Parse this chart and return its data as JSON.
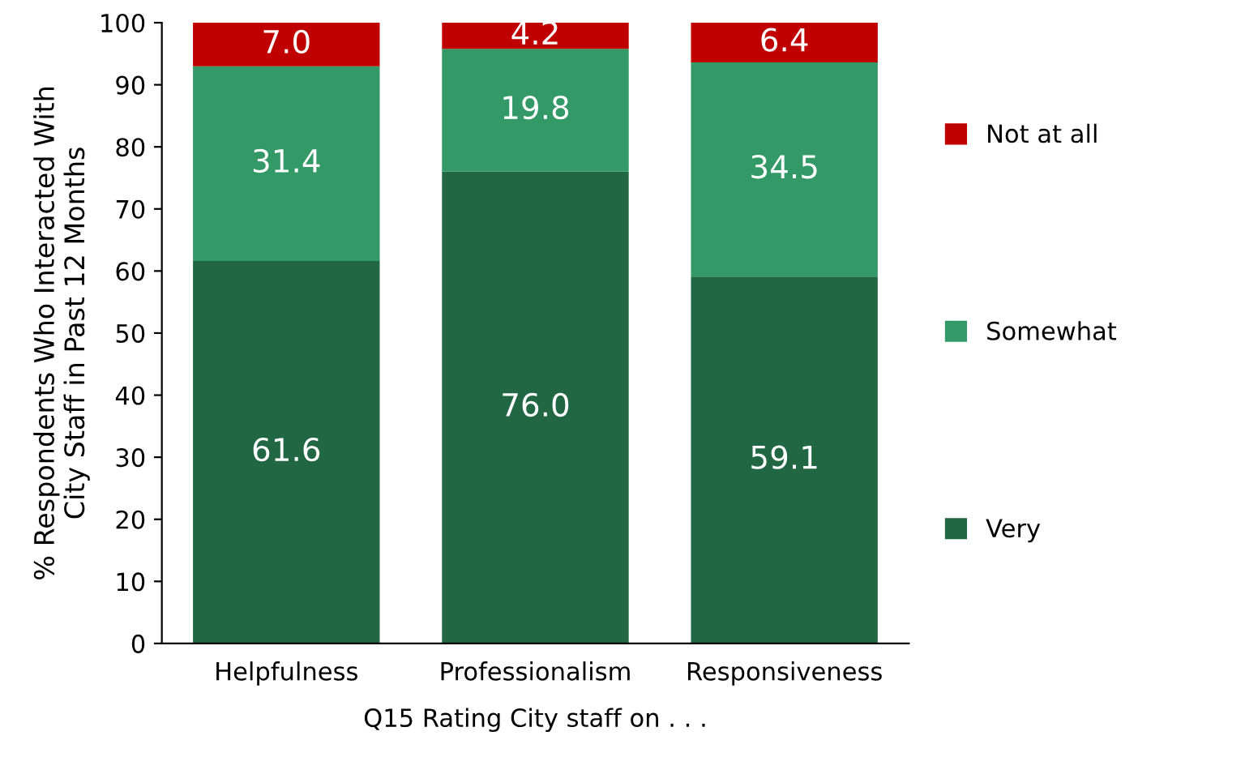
{
  "chart_data": {
    "type": "bar",
    "stacked": true,
    "xlabel": "Q15 Rating City staff on . . .",
    "ylabel": "% Respondents Who Interacted With\nCity Staff in Past 12 Months",
    "categories": [
      "Helpfulness",
      "Professionalism",
      "Responsiveness"
    ],
    "series": [
      {
        "name": "Very",
        "color": "#226744",
        "values": [
          61.6,
          76.0,
          59.1
        ],
        "value_labels": [
          "61.6",
          "76.0",
          "59.1"
        ]
      },
      {
        "name": "Somewhat",
        "color": "#339966",
        "values": [
          31.4,
          19.8,
          34.5
        ],
        "value_labels": [
          "31.4",
          "19.8",
          "34.5"
        ]
      },
      {
        "name": "Not at all",
        "color": "#c00000",
        "values": [
          7.0,
          4.2,
          6.4
        ],
        "value_labels": [
          "7.0",
          "4.2",
          "6.4"
        ]
      }
    ],
    "ylim": [
      0,
      100
    ],
    "yticks": [
      0,
      10,
      20,
      30,
      40,
      50,
      60,
      70,
      80,
      90,
      100
    ],
    "grid": false,
    "legend": "right"
  }
}
